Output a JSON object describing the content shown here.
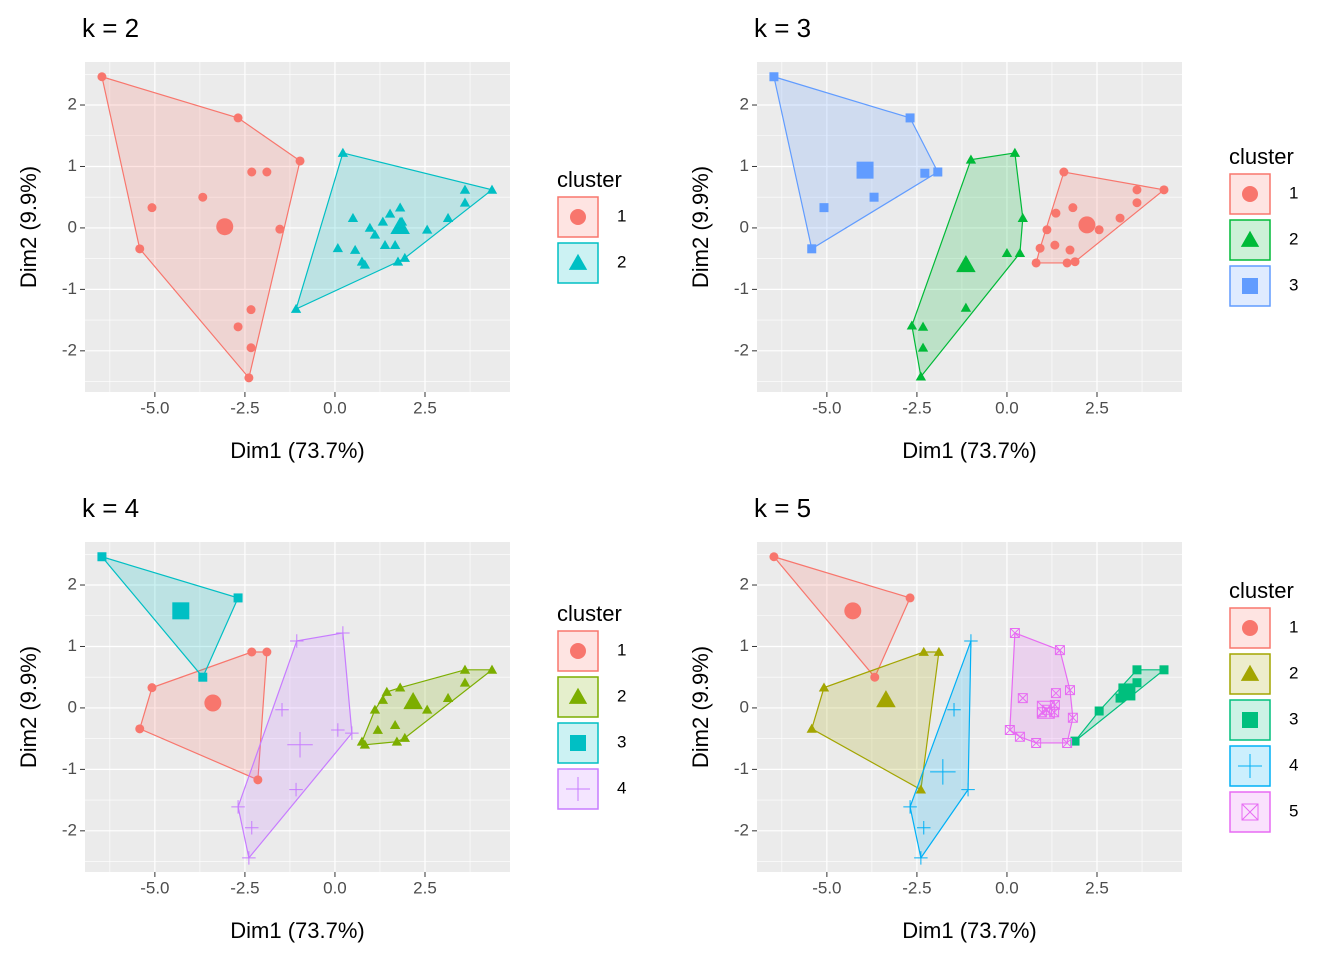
{
  "chart_data": [
    {
      "type": "scatter",
      "title": "k = 2",
      "xlabel": "Dim1 (73.7%)",
      "ylabel": "Dim2 (9.9%)",
      "legend_title": "cluster",
      "xlim": [
        -6.94,
        4.86
      ],
      "ylim": [
        -2.67,
        2.7
      ],
      "xticks": [
        {
          "value": -5,
          "label": "-5.0"
        },
        {
          "value": -2.5,
          "label": "-2.5"
        },
        {
          "value": 0,
          "label": "0.0"
        },
        {
          "value": 2.5,
          "label": "2.5"
        }
      ],
      "yticks": [
        -2,
        -1,
        0,
        1,
        2
      ],
      "grid": true,
      "series": [
        {
          "name": "1",
          "color": "#F8766D",
          "marker": "circle",
          "x": [
            -6.47,
            -2.69,
            -0.97,
            -2.31,
            -1.89,
            -3.67,
            -5.08,
            -1.53,
            -5.42,
            -2.33,
            -2.69,
            -2.33,
            -2.39
          ],
          "y": [
            2.46,
            1.79,
            1.09,
            0.91,
            0.91,
            0.5,
            0.33,
            -0.02,
            -0.34,
            -1.33,
            -1.61,
            -1.95,
            -2.44
          ],
          "centroid": [
            -3.06,
            0.02
          ]
        },
        {
          "name": "2",
          "color": "#00BFC4",
          "marker": "triangle",
          "x": [
            0.22,
            4.36,
            3.61,
            3.61,
            3.14,
            2.56,
            -1.08,
            0.5,
            0.08,
            0.56,
            0.83,
            1.11,
            1.33,
            1.53,
            1.81,
            1.86,
            1.39,
            1.67,
            1.94,
            1.75,
            0.97,
            0.75
          ],
          "y": [
            1.22,
            0.62,
            0.62,
            0.41,
            0.16,
            -0.03,
            -1.32,
            0.16,
            -0.33,
            -0.36,
            -0.6,
            -0.11,
            0.1,
            0.23,
            0.33,
            0.1,
            -0.28,
            -0.28,
            -0.49,
            -0.55,
            0.0,
            -0.55
          ],
          "centroid": [
            1.81,
            0.02
          ]
        }
      ]
    },
    {
      "type": "scatter",
      "title": "k = 3",
      "xlabel": "Dim1 (73.7%)",
      "ylabel": "Dim2 (9.9%)",
      "legend_title": "cluster",
      "xlim": [
        -6.94,
        4.86
      ],
      "ylim": [
        -2.67,
        2.7
      ],
      "xticks": [
        {
          "value": -5,
          "label": "-5.0"
        },
        {
          "value": -2.5,
          "label": "-2.5"
        },
        {
          "value": 0,
          "label": "0.0"
        },
        {
          "value": 2.5,
          "label": "2.5"
        }
      ],
      "yticks": [
        -2,
        -1,
        0,
        1,
        2
      ],
      "grid": true,
      "series": [
        {
          "name": "1",
          "color": "#F8766D",
          "marker": "circle",
          "x": [
            1.58,
            4.36,
            3.61,
            3.61,
            3.14,
            2.56,
            1.36,
            1.83,
            1.11,
            1.33,
            1.75,
            1.89,
            1.67,
            0.81,
            0.92
          ],
          "y": [
            0.91,
            0.62,
            0.62,
            0.41,
            0.16,
            -0.03,
            0.24,
            0.33,
            -0.03,
            -0.28,
            -0.36,
            -0.55,
            -0.57,
            -0.57,
            -0.33
          ],
          "centroid": [
            2.22,
            0.05
          ]
        },
        {
          "name": "2",
          "color": "#00BA38",
          "marker": "triangle",
          "x": [
            -1.0,
            0.22,
            0.44,
            0.36,
            0.0,
            -1.14,
            -2.33,
            -2.64,
            -2.33,
            -2.39
          ],
          "y": [
            1.11,
            1.22,
            0.16,
            -0.41,
            -0.41,
            -1.3,
            -1.61,
            -1.59,
            -1.95,
            -2.42
          ],
          "centroid": [
            -1.14,
            -0.6
          ]
        },
        {
          "name": "3",
          "color": "#619CFF",
          "marker": "square",
          "x": [
            -6.47,
            -2.69,
            -1.92,
            -2.28,
            -3.69,
            -5.08,
            -5.42
          ],
          "y": [
            2.46,
            1.79,
            0.91,
            0.89,
            0.5,
            0.33,
            -0.34
          ],
          "centroid": [
            -3.94,
            0.94
          ]
        }
      ]
    },
    {
      "type": "scatter",
      "title": "k = 4",
      "xlabel": "Dim1 (73.7%)",
      "ylabel": "Dim2 (9.9%)",
      "legend_title": "cluster",
      "xlim": [
        -6.94,
        4.86
      ],
      "ylim": [
        -2.67,
        2.7
      ],
      "xticks": [
        {
          "value": -5,
          "label": "-5.0"
        },
        {
          "value": -2.5,
          "label": "-2.5"
        },
        {
          "value": 0,
          "label": "0.0"
        },
        {
          "value": 2.5,
          "label": "2.5"
        }
      ],
      "yticks": [
        -2,
        -1,
        0,
        1,
        2
      ],
      "grid": true,
      "series": [
        {
          "name": "1",
          "color": "#F8766D",
          "marker": "circle",
          "x": [
            -5.08,
            -5.42,
            -2.31,
            -1.89,
            -2.14
          ],
          "y": [
            0.33,
            -0.34,
            0.91,
            0.91,
            -1.17
          ],
          "centroid": [
            -3.39,
            0.08
          ]
        },
        {
          "name": "2",
          "color": "#7CAE00",
          "marker": "triangle",
          "x": [
            1.44,
            4.36,
            3.61,
            3.61,
            3.14,
            2.56,
            1.81,
            1.11,
            1.33,
            0.83,
            0.75,
            1.72,
            1.94,
            1.67,
            1.19
          ],
          "y": [
            0.26,
            0.62,
            0.62,
            0.41,
            0.16,
            -0.03,
            0.33,
            -0.03,
            0.13,
            -0.6,
            -0.55,
            -0.55,
            -0.49,
            -0.28,
            -0.36
          ],
          "centroid": [
            2.17,
            0.1
          ]
        },
        {
          "name": "3",
          "color": "#00BFC4",
          "marker": "square",
          "x": [
            -6.47,
            -2.69,
            -3.67
          ],
          "y": [
            2.46,
            1.79,
            0.5
          ],
          "centroid": [
            -4.28,
            1.58
          ]
        },
        {
          "name": "4",
          "color": "#C77CFF",
          "marker": "plus",
          "x": [
            -1.06,
            0.22,
            0.47,
            0.08,
            -1.47,
            -1.08,
            -2.69,
            -2.31,
            -2.39
          ],
          "y": [
            1.09,
            1.22,
            -0.41,
            -0.36,
            -0.03,
            -1.33,
            -1.61,
            -1.95,
            -2.44
          ],
          "centroid": [
            -0.97,
            -0.6
          ]
        }
      ]
    },
    {
      "type": "scatter",
      "title": "k = 5",
      "xlabel": "Dim1 (73.7%)",
      "ylabel": "Dim2 (9.9%)",
      "legend_title": "cluster",
      "xlim": [
        -6.94,
        4.86
      ],
      "ylim": [
        -2.67,
        2.7
      ],
      "xticks": [
        {
          "value": -5,
          "label": "-5.0"
        },
        {
          "value": -2.5,
          "label": "-2.5"
        },
        {
          "value": 0,
          "label": "0.0"
        },
        {
          "value": 2.5,
          "label": "2.5"
        }
      ],
      "yticks": [
        -2,
        -1,
        0,
        1,
        2
      ],
      "grid": true,
      "series": [
        {
          "name": "1",
          "color": "#F8766D",
          "marker": "circle",
          "x": [
            -6.47,
            -2.69,
            -3.67
          ],
          "y": [
            2.46,
            1.79,
            0.5
          ],
          "centroid": [
            -4.28,
            1.58
          ]
        },
        {
          "name": "2",
          "color": "#A3A500",
          "marker": "triangle",
          "x": [
            -5.08,
            -5.42,
            -2.31,
            -1.89,
            -2.39
          ],
          "y": [
            0.33,
            -0.34,
            0.91,
            0.91,
            -1.33
          ],
          "centroid": [
            -3.36,
            0.13
          ]
        },
        {
          "name": "3",
          "color": "#00BF7D",
          "marker": "square",
          "x": [
            4.36,
            3.61,
            3.61,
            3.14,
            2.56,
            1.89
          ],
          "y": [
            0.62,
            0.62,
            0.41,
            0.16,
            -0.05,
            -0.54
          ],
          "centroid": [
            3.33,
            0.26
          ]
        },
        {
          "name": "4",
          "color": "#00B0F6",
          "marker": "plus",
          "x": [
            -1.0,
            -1.47,
            -1.08,
            -2.69,
            -2.31,
            -2.39
          ],
          "y": [
            1.09,
            -0.03,
            -1.33,
            -1.61,
            -1.95,
            -2.44
          ],
          "centroid": [
            -1.78,
            -1.04
          ]
        },
        {
          "name": "5",
          "color": "#E76BF3",
          "marker": "square-cross",
          "x": [
            0.22,
            1.47,
            0.44,
            1.75,
            1.36,
            1.11,
            1.33,
            1.83,
            0.08,
            0.36,
            0.81,
            1.67,
            1.31,
            0.97
          ],
          "y": [
            1.22,
            0.94,
            0.16,
            0.29,
            0.24,
            -0.03,
            0.05,
            -0.16,
            -0.36,
            -0.47,
            -0.57,
            -0.57,
            -0.07,
            -0.07
          ],
          "centroid": [
            1.08,
            -0.03
          ]
        }
      ]
    }
  ]
}
